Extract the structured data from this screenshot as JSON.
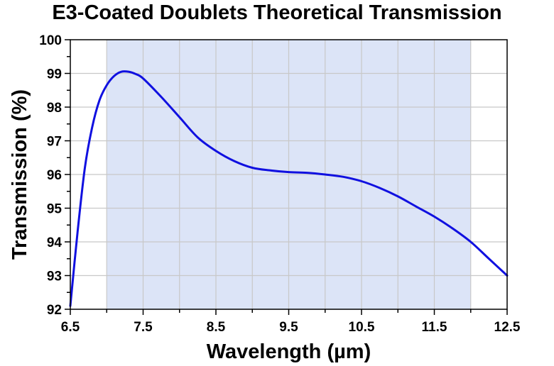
{
  "chart_data": {
    "type": "line",
    "title": "E3-Coated Doublets Theoretical Transmission",
    "xlabel": "Wavelength (µm)",
    "ylabel": "Transmission (%)",
    "xlim": [
      6.5,
      12.5
    ],
    "ylim": [
      92,
      100
    ],
    "x_ticks": [
      "6.5",
      "7.5",
      "8.5",
      "9.5",
      "10.5",
      "11.5",
      "12.5"
    ],
    "y_ticks": [
      "92",
      "93",
      "94",
      "95",
      "96",
      "97",
      "98",
      "99",
      "100"
    ],
    "grid": true,
    "shaded_band": {
      "x_start": 7.0,
      "x_end": 12.0,
      "color": "#dce4f7"
    },
    "series": [
      {
        "color": "#1010e0",
        "x": [
          6.5,
          6.6,
          6.7,
          6.8,
          6.9,
          7.0,
          7.1,
          7.2,
          7.3,
          7.4,
          7.5,
          7.75,
          8.0,
          8.25,
          8.5,
          8.75,
          9.0,
          9.25,
          9.5,
          9.75,
          10.0,
          10.25,
          10.5,
          10.75,
          11.0,
          11.25,
          11.5,
          11.75,
          12.0,
          12.25,
          12.5
        ],
        "y": [
          92.1,
          94.3,
          96.2,
          97.4,
          98.2,
          98.65,
          98.92,
          99.05,
          99.05,
          98.98,
          98.85,
          98.3,
          97.7,
          97.1,
          96.7,
          96.4,
          96.2,
          96.12,
          96.07,
          96.05,
          96.0,
          95.93,
          95.8,
          95.6,
          95.35,
          95.05,
          94.75,
          94.4,
          94.0,
          93.5,
          93.0
        ]
      }
    ]
  }
}
